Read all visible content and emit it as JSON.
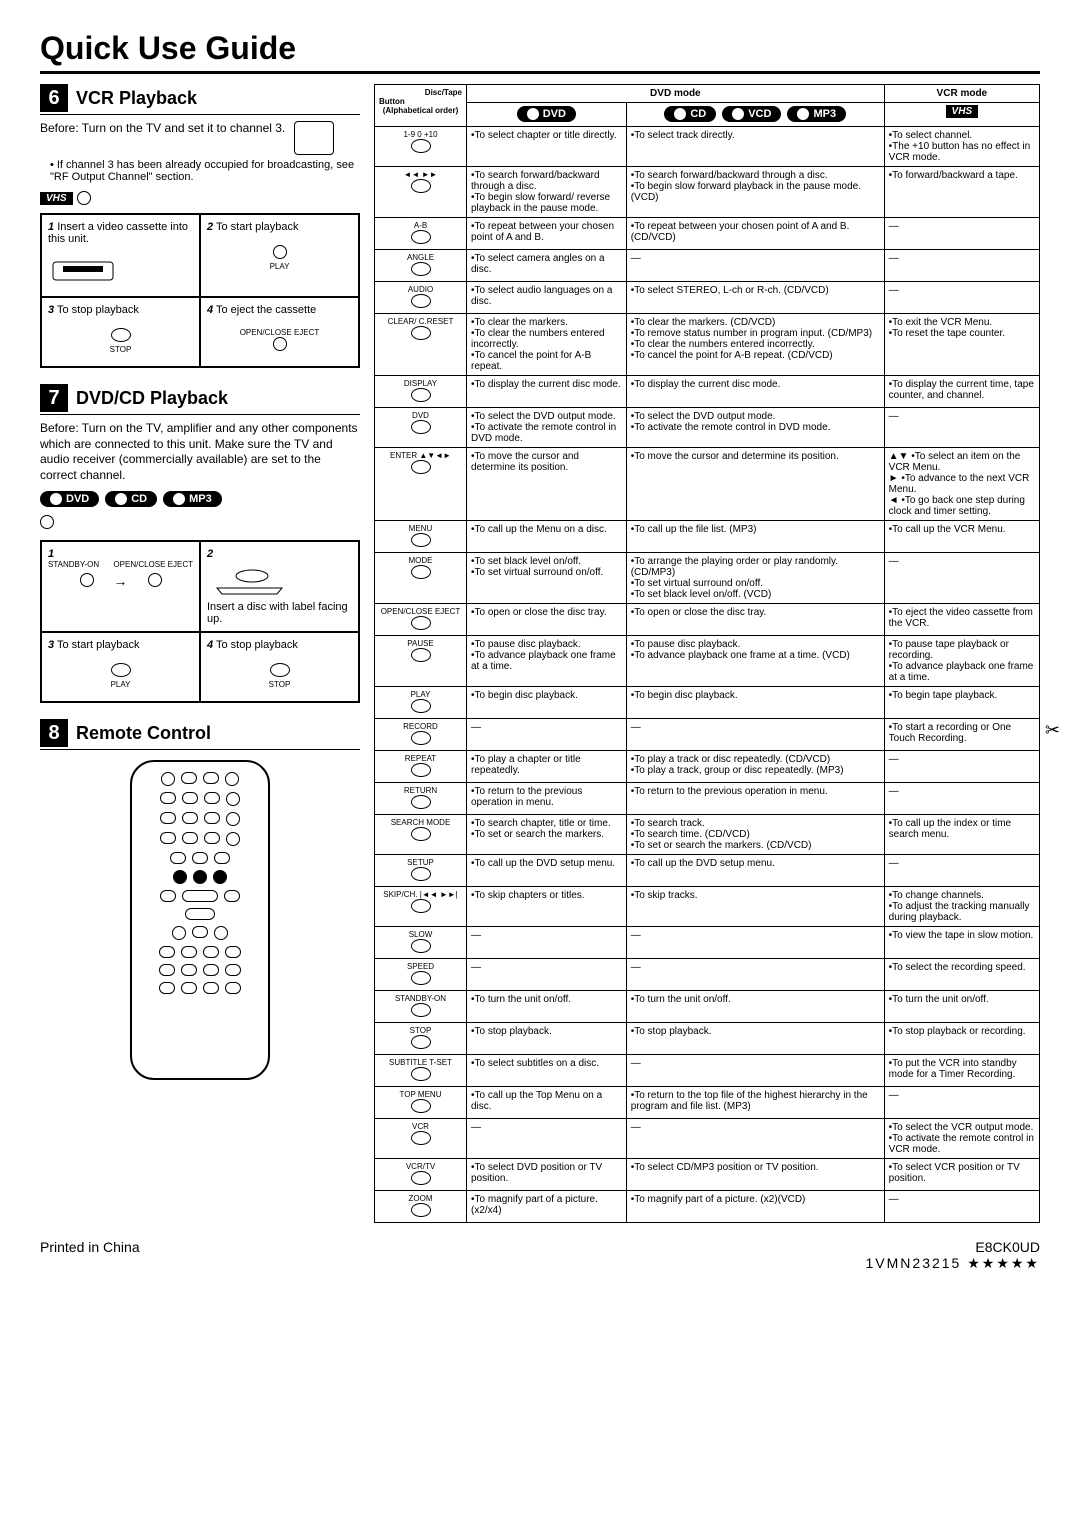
{
  "title": "Quick Use Guide",
  "footer_left": "Printed in China",
  "footer_right1": "E8CK0UD",
  "footer_right2": "1VMN23215 ★★★★★",
  "sections": {
    "s6": {
      "num": "6",
      "title": "VCR Playback",
      "before": "Before:  Turn on the TV and set it to channel 3.",
      "note": "If channel 3 has been already occupied for broadcasting, see \"RF Output Channel\" section.",
      "c1": "Insert a video cassette into this unit.",
      "c2": "To start playback",
      "c3": "To stop playback",
      "c4": "To eject the cassette",
      "n1": "1",
      "n2": "2",
      "n3": "3",
      "n4": "4",
      "vhs": "VHS"
    },
    "s7": {
      "num": "7",
      "title": "DVD/CD Playback",
      "before": "Before: Turn on the TV, amplifier and any other components which are connected to this unit. Make sure the TV and audio receiver (commercially available) are set to the correct channel.",
      "p_dvd": "DVD",
      "p_cd": "CD",
      "p_mp3": "MP3",
      "c1_a": "STANDBY-ON",
      "c1_b": "OPEN/CLOSE EJECT",
      "c2": "Insert a disc with label facing up.",
      "c3": "To start playback",
      "c4": "To stop playback",
      "n1": "1",
      "n2": "2",
      "n3": "3",
      "n4": "4",
      "lbl_play": "PLAY",
      "lbl_stop": "STOP"
    },
    "s8": {
      "num": "8",
      "title": "Remote Control"
    }
  },
  "th": {
    "col1a": "Disc/Tape",
    "col1b": "Button",
    "col1c": "(Alphabetical order)",
    "dvd_mode": "DVD mode",
    "vcr_mode": "VCR mode",
    "p_dvd": "DVD",
    "p_cd": "CD",
    "p_vcd": "VCD",
    "p_mp3": "MP3",
    "p_vhs": "VHS"
  },
  "rows": [
    {
      "b": "1-9 0 +10",
      "d": "•To select chapter or title directly.",
      "c": "•To select track directly.",
      "v": "•To select channel.\n•The +10 button has no effect in VCR mode."
    },
    {
      "b": "◄◄  ►►",
      "d": "•To search forward/backward through a disc.\n•To begin slow forward/ reverse playback in the pause mode.",
      "c": "•To search forward/backward through a disc.\n•To begin slow forward playback in the pause mode. (VCD)",
      "v": "•To forward/backward a tape."
    },
    {
      "b": "A-B",
      "d": "•To repeat between your chosen point of A and B.",
      "c": "•To repeat between your chosen point of A and B. (CD/VCD)",
      "v": "—"
    },
    {
      "b": "ANGLE",
      "d": "•To select camera angles on a disc.",
      "c": "—",
      "v": "—"
    },
    {
      "b": "AUDIO",
      "d": "•To select audio languages on a disc.",
      "c": "•To select STEREO, L-ch or R-ch. (CD/VCD)",
      "v": "—"
    },
    {
      "b": "CLEAR/ C.RESET",
      "d": "•To clear the markers.\n•To clear the numbers entered incorrectly.\n•To cancel the point for A-B repeat.",
      "c": "•To clear the markers. (CD/VCD)\n•To remove status number in program input. (CD/MP3)\n•To clear the numbers entered incorrectly.\n•To cancel the point for A-B repeat. (CD/VCD)",
      "v": "•To exit the VCR Menu.\n•To reset the tape counter."
    },
    {
      "b": "DISPLAY",
      "d": "•To display the current disc mode.",
      "c": "•To display the current disc mode.",
      "v": "•To display the current time, tape counter, and channel."
    },
    {
      "b": "DVD",
      "d": "•To select the DVD output mode.\n•To activate the remote control in DVD mode.",
      "c": "•To select the DVD output mode.\n•To activate the remote control in DVD mode.",
      "v": "—"
    },
    {
      "b": "ENTER ▲▼◄►",
      "d": "•To move the cursor and determine its position.",
      "c": "•To move the cursor and determine its position.",
      "v": "▲▼ •To select an item on the VCR Menu.\n► •To advance to the next VCR Menu.\n◄ •To go back one step during clock and timer setting."
    },
    {
      "b": "MENU",
      "d": "•To call up the Menu on a disc.",
      "c": "•To call up the file list. (MP3)",
      "v": "•To call up the VCR Menu."
    },
    {
      "b": "MODE",
      "d": "•To set black level on/off.\n•To set virtual surround on/off.",
      "c": "•To arrange the playing order or play randomly. (CD/MP3)\n•To set virtual surround on/off.\n•To set black level on/off. (VCD)",
      "v": "—"
    },
    {
      "b": "OPEN/CLOSE EJECT",
      "d": "•To open or close the disc tray.",
      "c": "•To open or close the disc tray.",
      "v": "•To eject the video cassette from the VCR."
    },
    {
      "b": "PAUSE",
      "d": "•To pause disc playback.\n•To advance playback one frame at a time.",
      "c": "•To pause disc playback.\n•To advance playback one frame at a time. (VCD)",
      "v": "•To pause tape playback or recording.\n•To advance playback one frame at a time."
    },
    {
      "b": "PLAY",
      "d": "•To begin disc playback.",
      "c": "•To begin disc playback.",
      "v": "•To begin tape playback."
    },
    {
      "b": "RECORD",
      "d": "—",
      "c": "—",
      "v": "•To start a recording or One Touch Recording."
    },
    {
      "b": "REPEAT",
      "d": "•To play a chapter or title repeatedly.",
      "c": "•To play a track or disc repeatedly. (CD/VCD)\n•To play a track, group or disc repeatedly. (MP3)",
      "v": "—"
    },
    {
      "b": "RETURN",
      "d": "•To return to the previous operation in menu.",
      "c": "•To return to the previous operation in menu.",
      "v": "—"
    },
    {
      "b": "SEARCH MODE",
      "d": "•To search chapter, title or time.\n•To set or search the markers.",
      "c": "•To search track.\n•To search time. (CD/VCD)\n•To set or search the markers. (CD/VCD)",
      "v": "•To call up the index or time search menu."
    },
    {
      "b": "SETUP",
      "d": "•To call up the DVD setup menu.",
      "c": "•To call up the DVD setup menu.",
      "v": "—"
    },
    {
      "b": "SKIP/CH. |◄◄ ►►|",
      "d": "•To skip chapters or titles.",
      "c": "•To skip tracks.",
      "v": "•To change channels.\n•To adjust the tracking manually during playback."
    },
    {
      "b": "SLOW",
      "d": "—",
      "c": "—",
      "v": "•To view the tape in slow motion."
    },
    {
      "b": "SPEED",
      "d": "—",
      "c": "—",
      "v": "•To select the recording speed."
    },
    {
      "b": "STANDBY-ON",
      "d": "•To turn the unit on/off.",
      "c": "•To turn the unit on/off.",
      "v": "•To turn the unit on/off."
    },
    {
      "b": "STOP",
      "d": "•To stop playback.",
      "c": "•To stop playback.",
      "v": "•To stop playback or recording."
    },
    {
      "b": "SUBTITLE T-SET",
      "d": "•To select subtitles on a disc.",
      "c": "—",
      "v": "•To put the VCR into standby mode for a Timer Recording."
    },
    {
      "b": "TOP MENU",
      "d": "•To call up the Top Menu on a disc.",
      "c": "•To return to the top file of the highest hierarchy in the program and file list. (MP3)",
      "v": "—"
    },
    {
      "b": "VCR",
      "d": "—",
      "c": "—",
      "v": "•To select the VCR output mode.\n•To activate the remote control in VCR mode."
    },
    {
      "b": "VCR/TV",
      "d": "•To select DVD position or TV position.",
      "c": "•To select CD/MP3 position or TV position.",
      "v": "•To select VCR position or TV position."
    },
    {
      "b": "ZOOM",
      "d": "•To magnify part of a picture. (x2/x4)",
      "c": "•To magnify part of a picture. (x2)(VCD)",
      "v": "—"
    }
  ]
}
